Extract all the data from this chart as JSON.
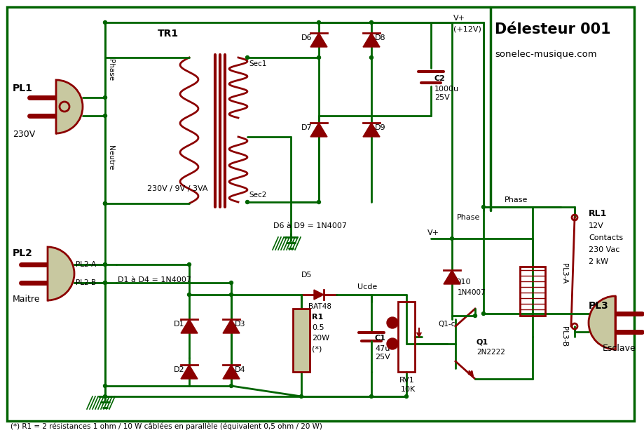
{
  "title": "Délesteur 001",
  "subtitle": "sonelec-musique.com",
  "footer": "(*) R1 = 2 résistances 1 ohm / 10 W câblées en parallèle (équivalent 0,5 ohm / 20 W)",
  "bg_color": "#ffffff",
  "wire_color": "#006400",
  "component_color": "#8B0000",
  "border_color": "#006400",
  "node_color": "#006400",
  "text_color": "#000000",
  "plug_fill": "#c8c8a0",
  "plug_border": "#8B0000"
}
